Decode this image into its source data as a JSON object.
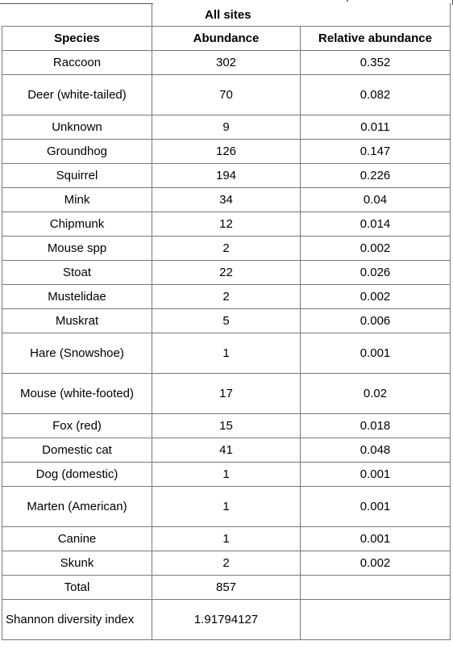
{
  "table": {
    "title": "All sites",
    "headers": [
      "Species",
      "Abundance",
      "Relative abundance"
    ],
    "rows": [
      {
        "species": "Raccoon",
        "abundance": "302",
        "relative": "0.352"
      },
      {
        "species": "Deer (white-tailed)",
        "abundance": "70",
        "relative": "0.082"
      },
      {
        "species": "Unknown",
        "abundance": "9",
        "relative": "0.011"
      },
      {
        "species": "Groundhog",
        "abundance": "126",
        "relative": "0.147"
      },
      {
        "species": "Squirrel",
        "abundance": "194",
        "relative": "0.226"
      },
      {
        "species": "Mink",
        "abundance": "34",
        "relative": "0.04"
      },
      {
        "species": "Chipmunk",
        "abundance": "12",
        "relative": "0.014"
      },
      {
        "species": "Mouse spp",
        "abundance": "2",
        "relative": "0.002"
      },
      {
        "species": "Stoat",
        "abundance": "22",
        "relative": "0.026"
      },
      {
        "species": "Mustelidae",
        "abundance": "2",
        "relative": "0.002"
      },
      {
        "species": "Muskrat",
        "abundance": "5",
        "relative": "0.006"
      },
      {
        "species": "Hare (Snowshoe)",
        "abundance": "1",
        "relative": "0.001"
      },
      {
        "species": "Mouse (white-footed)",
        "abundance": "17",
        "relative": "0.02"
      },
      {
        "species": "Fox (red)",
        "abundance": "15",
        "relative": "0.018"
      },
      {
        "species": "Domestic cat",
        "abundance": "41",
        "relative": "0.048"
      },
      {
        "species": "Dog (domestic)",
        "abundance": "1",
        "relative": "0.001"
      },
      {
        "species": "Marten (American)",
        "abundance": "1",
        "relative": "0.001"
      },
      {
        "species": "Canine",
        "abundance": "1",
        "relative": "0.001"
      },
      {
        "species": "Skunk",
        "abundance": "2",
        "relative": "0.002"
      }
    ],
    "total": {
      "label": "Total",
      "value": "857"
    },
    "shannon": {
      "label": "Shannon diversity index",
      "value": "1.91794127"
    }
  }
}
